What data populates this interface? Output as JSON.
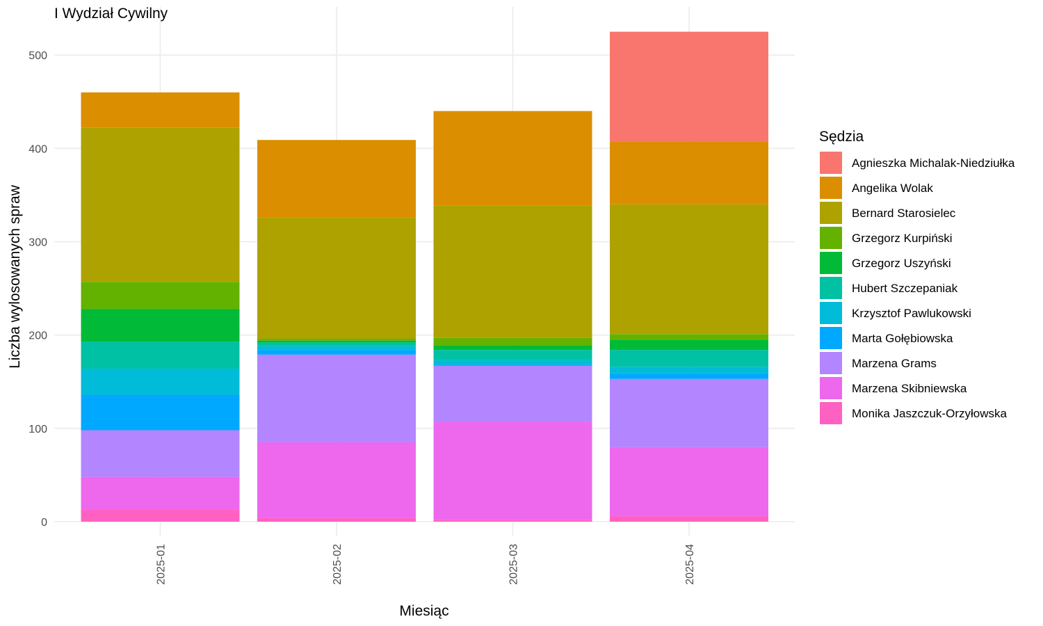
{
  "chart_data": {
    "type": "bar",
    "stacked": true,
    "title": "I Wydział Cywilny",
    "xlabel": "Miesiąc",
    "ylabel": "Liczba wylosowanych spraw",
    "categories": [
      "2025-01",
      "2025-02",
      "2025-03",
      "2025-04"
    ],
    "ylim": [
      0,
      530
    ],
    "yticks": [
      0,
      100,
      200,
      300,
      400,
      500
    ],
    "grid": true,
    "legend": {
      "title": "Sędzia",
      "position": "right"
    },
    "series": [
      {
        "name": "Monika Jaszczuk-Orzyłowska",
        "color": "#FF61C3",
        "values": [
          13,
          4,
          2,
          6
        ]
      },
      {
        "name": "Marzena Skibniewska",
        "color": "#ED68ED",
        "values": [
          35,
          81,
          105,
          74
        ]
      },
      {
        "name": "Marzena Grams",
        "color": "#B385FF",
        "values": [
          50,
          94,
          60,
          73
        ]
      },
      {
        "name": "Marta Gołębiowska",
        "color": "#00A9FF",
        "values": [
          38,
          5,
          1,
          6
        ]
      },
      {
        "name": "Krzysztof Pawlukowski",
        "color": "#00BCD8",
        "values": [
          28,
          4,
          5,
          7
        ]
      },
      {
        "name": "Hubert Szczepaniak",
        "color": "#00C1A3",
        "values": [
          29,
          4,
          11,
          18
        ]
      },
      {
        "name": "Grzegorz Uszyński",
        "color": "#00BA38",
        "values": [
          35,
          2,
          5,
          11
        ]
      },
      {
        "name": "Grzegorz Kurpiński",
        "color": "#64B200",
        "values": [
          29,
          2,
          8,
          6
        ]
      },
      {
        "name": "Bernard Starosielec",
        "color": "#AEA200",
        "values": [
          165,
          130,
          142,
          139
        ]
      },
      {
        "name": "Angelika Wolak",
        "color": "#DB8E00",
        "values": [
          38,
          83,
          101,
          67
        ]
      },
      {
        "name": "Agnieszka Michalak-Niedziułka",
        "color": "#F8766D",
        "values": [
          0,
          0,
          0,
          118
        ]
      }
    ],
    "legend_order": [
      "Agnieszka Michalak-Niedziułka",
      "Angelika Wolak",
      "Bernard Starosielec",
      "Grzegorz Kurpiński",
      "Grzegorz Uszyński",
      "Hubert Szczepaniak",
      "Krzysztof Pawlukowski",
      "Marta Gołębiowska",
      "Marzena Grams",
      "Marzena Skibniewska",
      "Monika Jaszczuk-Orzyłowska"
    ]
  }
}
